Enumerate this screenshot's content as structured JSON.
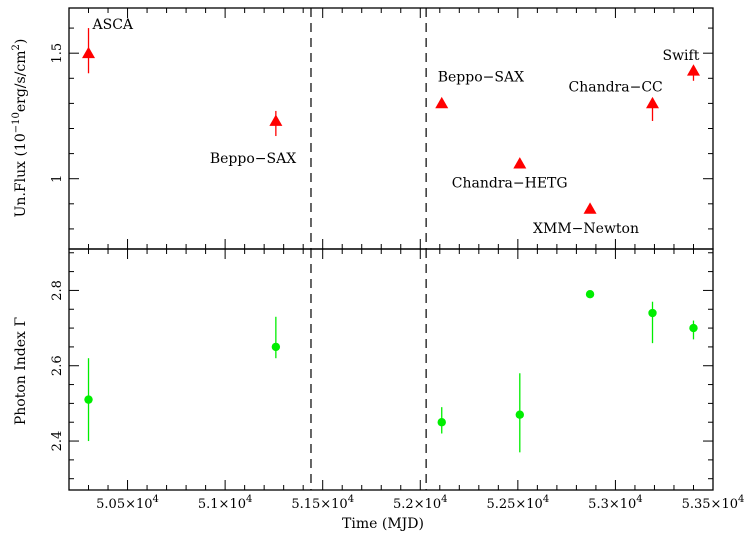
{
  "chart_data": [
    {
      "type": "scatter",
      "panel": "top",
      "ylabel": "Un.Flux (10",
      "ylabel_sup": "−10",
      "ylabel_unit": "erg/s/cm",
      "ylabel_sup2": "2",
      "ylabel_end": ")",
      "xlim": [
        50200,
        53500
      ],
      "ylim": [
        0.72,
        1.68
      ],
      "yticks": [
        1,
        1.5
      ],
      "ytick_labels": [
        "1",
        "1.5"
      ],
      "marker": "triangle",
      "color": "#ff0000",
      "points": [
        {
          "x": 50300,
          "y": 1.5,
          "ylow": 1.42,
          "yhigh": 1.6,
          "label": "ASCA"
        },
        {
          "x": 51260,
          "y": 1.23,
          "ylow": 1.17,
          "yhigh": 1.27,
          "label": "Beppo−SAX"
        },
        {
          "x": 52110,
          "y": 1.3,
          "ylow": 1.3,
          "yhigh": 1.3,
          "label": "Beppo−SAX"
        },
        {
          "x": 52510,
          "y": 1.06,
          "ylow": 1.06,
          "yhigh": 1.06,
          "label": "Chandra−HETG"
        },
        {
          "x": 52870,
          "y": 0.88,
          "ylow": 0.88,
          "yhigh": 0.88,
          "label": "XMM−Newton"
        },
        {
          "x": 53190,
          "y": 1.3,
          "ylow": 1.23,
          "yhigh": 1.32,
          "label": "Chandra−CC"
        },
        {
          "x": 53400,
          "y": 1.43,
          "ylow": 1.39,
          "yhigh": 1.44,
          "label": "Swift"
        }
      ],
      "vlines": [
        51440,
        52030
      ]
    },
    {
      "type": "scatter",
      "panel": "bottom",
      "ylabel": "Photon Index Γ",
      "xlabel": "Time (MJD)",
      "xlim": [
        50200,
        53500
      ],
      "ylim": [
        2.27,
        2.91
      ],
      "yticks": [
        2.4,
        2.6,
        2.8
      ],
      "ytick_labels": [
        "2.4",
        "2.6",
        "2.8"
      ],
      "xticks": [
        50500,
        51000,
        51500,
        52000,
        52500,
        53000,
        53500
      ],
      "xtick_labels": [
        "5.05×10",
        "5.1×10",
        "5.15×10",
        "5.2×10",
        "5.25×10",
        "5.3×10",
        "5.35×10"
      ],
      "xtick_sup": "4",
      "marker": "circle",
      "color": "#00ee00",
      "points": [
        {
          "x": 50300,
          "y": 2.51,
          "ylow": 2.4,
          "yhigh": 2.62
        },
        {
          "x": 51260,
          "y": 2.65,
          "ylow": 2.62,
          "yhigh": 2.73
        },
        {
          "x": 52110,
          "y": 2.45,
          "ylow": 2.42,
          "yhigh": 2.49
        },
        {
          "x": 52510,
          "y": 2.47,
          "ylow": 2.37,
          "yhigh": 2.58
        },
        {
          "x": 52870,
          "y": 2.79,
          "ylow": 2.79,
          "yhigh": 2.79
        },
        {
          "x": 53190,
          "y": 2.74,
          "ylow": 2.66,
          "yhigh": 2.77
        },
        {
          "x": 53400,
          "y": 2.7,
          "ylow": 2.67,
          "yhigh": 2.72
        }
      ],
      "vlines": [
        51440,
        52030
      ]
    }
  ]
}
